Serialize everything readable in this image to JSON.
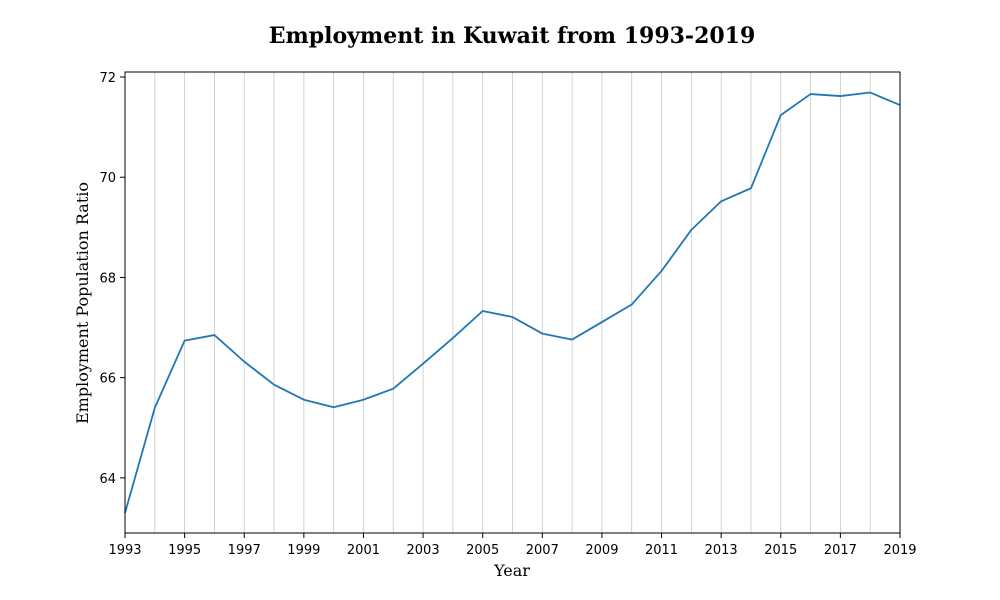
{
  "chart_data": {
    "type": "line",
    "title": "Employment in Kuwait from 1993-2019",
    "xlabel": "Year",
    "ylabel": "Employment Population Ratio",
    "xlim": [
      1993,
      2019
    ],
    "ylim": [
      62.9,
      72.1
    ],
    "x_ticks": [
      1993,
      1995,
      1997,
      1999,
      2001,
      2003,
      2005,
      2007,
      2009,
      2011,
      2013,
      2015,
      2017,
      2019
    ],
    "y_ticks": [
      64,
      66,
      68,
      70,
      72
    ],
    "grid": "vertical, every year",
    "legend": "none",
    "color": "#1f77b4",
    "series": [
      {
        "x": [
          1993,
          1994,
          1995,
          1996,
          1997,
          1998,
          1999,
          2000,
          2001,
          2002,
          2003,
          2004,
          2005,
          2006,
          2007,
          2008,
          2009,
          2010,
          2011,
          2012,
          2013,
          2014,
          2015,
          2016,
          2017,
          2018,
          2019
        ],
        "values": [
          63.3,
          65.4,
          66.74,
          66.85,
          66.32,
          65.86,
          65.56,
          65.41,
          65.56,
          65.78,
          66.28,
          66.79,
          67.33,
          67.21,
          66.88,
          66.76,
          67.11,
          67.46,
          68.13,
          68.95,
          69.52,
          69.78,
          71.24,
          71.66,
          71.62,
          71.69,
          71.44
        ]
      }
    ]
  }
}
